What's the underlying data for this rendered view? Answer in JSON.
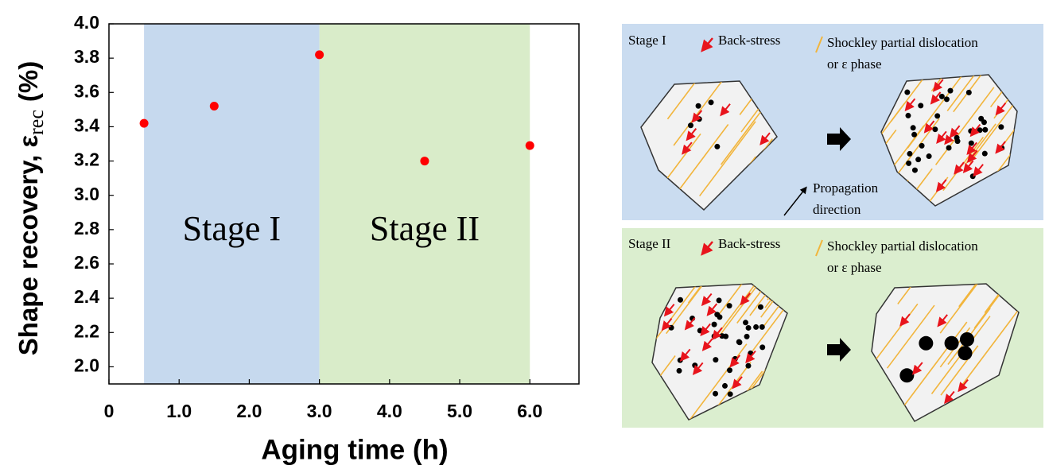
{
  "chart_data": {
    "type": "scatter",
    "x_label": "Aging time (h)",
    "y_label": "Shape recovery, ε",
    "y_label_sub": "rec",
    "y_label_unit": "(%)",
    "x": [
      0.5,
      1.5,
      3.0,
      4.5,
      6.0
    ],
    "values": [
      3.42,
      3.52,
      3.82,
      3.2,
      3.29
    ],
    "color": "#ff0000",
    "xlim": [
      0,
      6.7
    ],
    "ylim": [
      1.9,
      4.0
    ],
    "xticks": [
      0,
      {
        "value": 1,
        "label": "1.0"
      },
      {
        "value": 2,
        "label": "2.0"
      },
      {
        "value": 3,
        "label": "3.0"
      },
      {
        "value": 4,
        "label": "4.0"
      },
      {
        "value": 5,
        "label": "5.0"
      },
      {
        "value": 6,
        "label": "6.0"
      }
    ],
    "yticks": [
      {
        "value": 2,
        "label": "2.0"
      },
      2.2,
      2.4,
      2.6,
      2.8,
      {
        "value": 3,
        "label": "3.0"
      },
      3.2,
      3.4,
      3.6,
      3.8,
      {
        "value": 4,
        "label": "4.0"
      }
    ],
    "regions": [
      {
        "label": "Stage I",
        "from": 0.5,
        "to": 3.0,
        "color": "#c6d9ee"
      },
      {
        "label": "Stage II",
        "from": 3.0,
        "to": 6.0,
        "color": "#d9ecc9"
      }
    ]
  },
  "diagram": {
    "panels": [
      {
        "stage": "Stage I",
        "back_stress": "Back-stress",
        "dislocation": "Shockley partial dislocation",
        "phase": "or ε phase",
        "propagation": "Propagation",
        "direction": "direction"
      },
      {
        "stage": "Stage II",
        "back_stress": "Back-stress",
        "dislocation": "Shockley partial dislocation",
        "phase": "or ε phase"
      }
    ]
  }
}
